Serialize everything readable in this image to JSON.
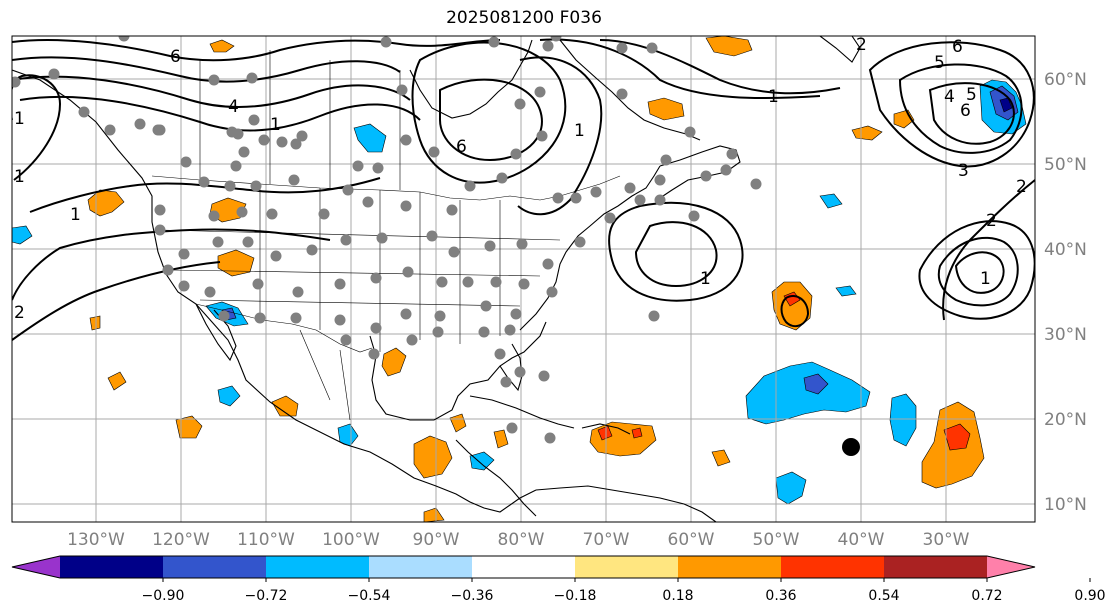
{
  "title": "2025081200 F036",
  "map": {
    "lat_labels": [
      {
        "text": "60°N",
        "lat": 60
      },
      {
        "text": "50°N",
        "lat": 50
      },
      {
        "text": "40°N",
        "lat": 40
      },
      {
        "text": "30°N",
        "lat": 30
      },
      {
        "text": "20°N",
        "lat": 20
      },
      {
        "text": "10°N",
        "lat": 10
      }
    ],
    "lon_labels": [
      {
        "text": "130°W",
        "lon": -130
      },
      {
        "text": "120°W",
        "lon": -120
      },
      {
        "text": "110°W",
        "lon": -110
      },
      {
        "text": "100°W",
        "lon": -100
      },
      {
        "text": "90°W",
        "lon": -90
      },
      {
        "text": "80°W",
        "lon": -80
      },
      {
        "text": "70°W",
        "lon": -70
      },
      {
        "text": "60°W",
        "lon": -60
      },
      {
        "text": "50°W",
        "lon": -50
      },
      {
        "text": "40°W",
        "lon": -40
      },
      {
        "text": "30°W",
        "lon": -30
      }
    ],
    "contour_labels": [
      "6",
      "4",
      "1",
      "1",
      "2",
      "1",
      "1",
      "6",
      "1",
      "1",
      "1",
      "2",
      "5",
      "6",
      "4",
      "5",
      "6",
      "3",
      "2",
      "2",
      "1"
    ],
    "marker_color": "#808080",
    "storm_marker_color": "#000000"
  },
  "colorbar": {
    "colors": [
      "#9933cc",
      "#000088",
      "#3355cc",
      "#00bbff",
      "#aaddff",
      "#ffffff",
      "#ffe680",
      "#ff9900",
      "#ff3300",
      "#aa2222",
      "#ff80aa"
    ],
    "ticks": [
      "−0.90",
      "−0.72",
      "−0.54",
      "−0.36",
      "−0.18",
      "0.18",
      "0.36",
      "0.54",
      "0.72",
      "0.90"
    ]
  }
}
